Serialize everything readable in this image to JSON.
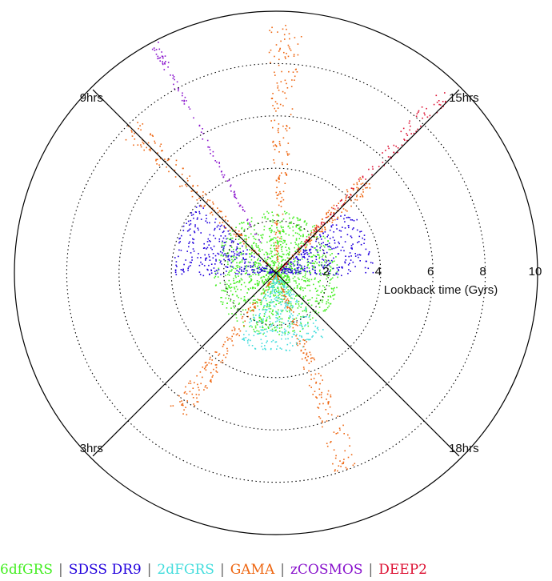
{
  "chart_data": {
    "type": "scatter",
    "projection": "polar",
    "title": "",
    "radial_axis": {
      "label": "Lookback time (Gyrs)",
      "range": [
        0,
        10
      ],
      "ticks": [
        2,
        4,
        6,
        8,
        10
      ],
      "tick_labels": [
        "2",
        "4",
        "6",
        "8",
        "10"
      ],
      "ring_style": "dotted"
    },
    "ra_axes": [
      {
        "label": "9hrs",
        "angle_deg": 135
      },
      {
        "label": "15hrs",
        "angle_deg": 45
      },
      {
        "label": "3hrs",
        "angle_deg": 225
      },
      {
        "label": "18hrs",
        "angle_deg": 315
      }
    ],
    "series": [
      {
        "name": "6dfGRS",
        "color": "#44ee22",
        "wedges": [
          {
            "angle_deg": 100,
            "width_deg": 180,
            "max_gyr": 2.4
          },
          {
            "angle_deg": 280,
            "width_deg": 180,
            "max_gyr": 2.4
          }
        ]
      },
      {
        "name": "SDSS DR9",
        "color": "#2200dd",
        "wedges": [
          {
            "angle_deg": 160,
            "width_deg": 44,
            "max_gyr": 4.0
          },
          {
            "angle_deg": 20,
            "width_deg": 44,
            "max_gyr": 3.7
          }
        ]
      },
      {
        "name": "2dFGRS",
        "color": "#44dddd",
        "wedges": [
          {
            "angle_deg": 275,
            "width_deg": 70,
            "max_gyr": 3.0
          }
        ]
      },
      {
        "name": "GAMA",
        "color": "#ee6611",
        "wedges": [
          {
            "angle_deg": 135,
            "width_deg": 7,
            "max_gyr": 8.0
          },
          {
            "angle_deg": 88,
            "width_deg": 8,
            "max_gyr": 9.5
          },
          {
            "angle_deg": 46,
            "width_deg": 9,
            "max_gyr": 5.0
          },
          {
            "angle_deg": 235,
            "width_deg": 8,
            "max_gyr": 6.5
          },
          {
            "angle_deg": 290,
            "width_deg": 8,
            "max_gyr": 8.0
          }
        ]
      },
      {
        "name": "zCOSMOS",
        "color": "#8811cc",
        "wedges": [
          {
            "angle_deg": 118,
            "width_deg": 2,
            "max_gyr": 10
          }
        ]
      },
      {
        "name": "DEEP2",
        "color": "#dd1133",
        "wedges": [
          {
            "angle_deg": 47,
            "width_deg": 4,
            "max_gyr": 9.5
          }
        ]
      }
    ],
    "legend_position": "bottom"
  }
}
